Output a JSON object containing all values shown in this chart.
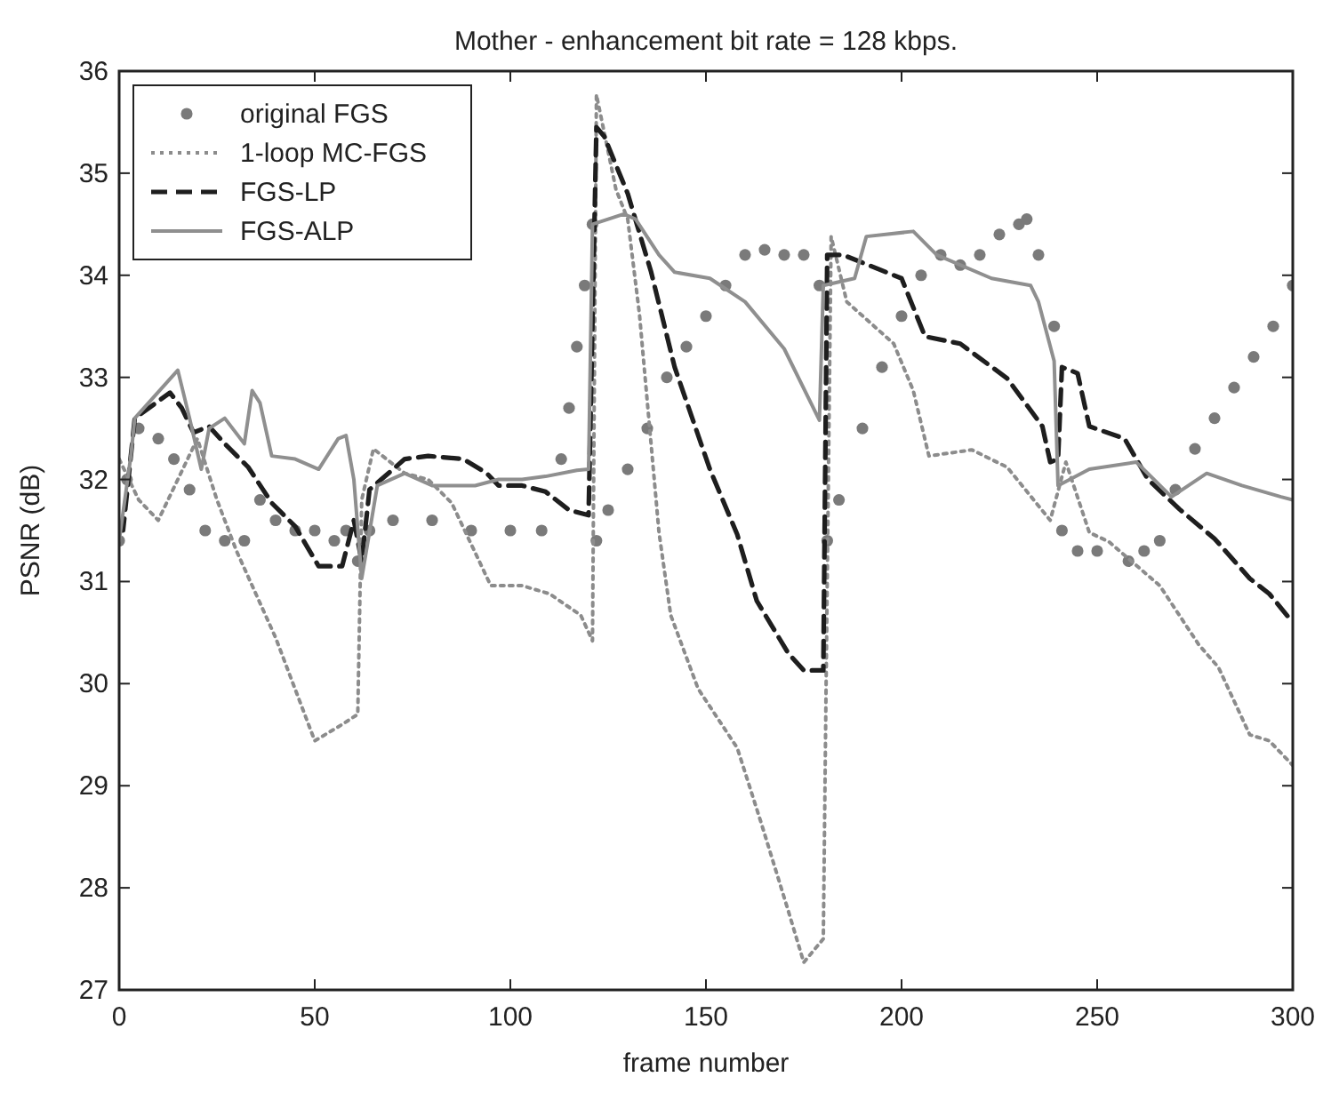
{
  "chart_data": {
    "type": "line",
    "title": "Mother - enhancement bit rate = 128 kbps.",
    "xlabel": "frame number",
    "ylabel": "PSNR (dB)",
    "xlim": [
      0,
      300
    ],
    "ylim": [
      27,
      36
    ],
    "xticks": [
      0,
      50,
      100,
      150,
      200,
      250,
      300
    ],
    "yticks": [
      27,
      28,
      29,
      30,
      31,
      32,
      33,
      34,
      35,
      36
    ],
    "grid": false,
    "legend": "top left",
    "series": [
      {
        "name": "original FGS",
        "type": "scatter",
        "marker": "circle",
        "color": "#7a7a7a",
        "x": [
          0,
          2,
          5,
          10,
          14,
          18,
          22,
          27,
          32,
          36,
          40,
          45,
          50,
          55,
          58,
          61,
          64,
          70,
          80,
          90,
          100,
          108,
          113,
          115,
          117,
          119,
          121,
          122,
          125,
          130,
          135,
          140,
          145,
          150,
          155,
          160,
          165,
          170,
          175,
          179,
          181,
          184,
          190,
          195,
          200,
          205,
          210,
          215,
          220,
          225,
          230,
          232,
          235,
          239,
          241,
          245,
          250,
          258,
          262,
          266,
          270,
          275,
          280,
          285,
          290,
          295,
          300
        ],
        "values": [
          31.4,
          32.0,
          32.5,
          32.4,
          32.2,
          31.9,
          31.5,
          31.4,
          31.4,
          31.8,
          31.6,
          31.5,
          31.5,
          31.4,
          31.5,
          31.2,
          31.5,
          31.6,
          31.6,
          31.5,
          31.5,
          31.5,
          32.2,
          32.7,
          33.3,
          33.9,
          34.5,
          31.4,
          31.7,
          32.1,
          32.5,
          33.0,
          33.3,
          33.6,
          33.9,
          34.2,
          34.25,
          34.2,
          34.2,
          33.9,
          31.4,
          31.8,
          32.5,
          33.1,
          33.6,
          34.0,
          34.2,
          34.1,
          34.2,
          34.4,
          34.5,
          34.55,
          34.2,
          33.5,
          31.5,
          31.3,
          31.3,
          31.2,
          31.3,
          31.4,
          31.9,
          32.3,
          32.6,
          32.9,
          33.2,
          33.5,
          33.9
        ]
      },
      {
        "name": "1-loop MC-FGS",
        "line_style": "dotted",
        "color": "#8c8c8c",
        "x": [
          0,
          5,
          10,
          15,
          20,
          25,
          30,
          40,
          50,
          57,
          61,
          62,
          65,
          73,
          79,
          85,
          95,
          103,
          110,
          118,
          121,
          122,
          127,
          130,
          133,
          138,
          141,
          148,
          158,
          164,
          171,
          175,
          180,
          181,
          182,
          186,
          198,
          203,
          207,
          218,
          227,
          238,
          242,
          248,
          253,
          266,
          276,
          281,
          289,
          294,
          300
        ],
        "values": [
          32.2,
          31.8,
          31.6,
          32.0,
          32.4,
          31.8,
          31.3,
          30.45,
          29.44,
          29.6,
          29.7,
          31.8,
          32.3,
          32.06,
          32.0,
          31.77,
          30.96,
          30.96,
          30.88,
          30.67,
          30.42,
          35.77,
          34.84,
          34.55,
          33.62,
          31.48,
          30.67,
          29.95,
          29.37,
          28.65,
          27.78,
          27.27,
          27.5,
          31.0,
          34.38,
          33.74,
          33.33,
          32.87,
          32.23,
          32.29,
          32.12,
          31.6,
          32.17,
          31.48,
          31.39,
          30.96,
          30.38,
          30.16,
          29.5,
          29.44,
          29.2
        ]
      },
      {
        "name": "FGS-LP",
        "line_style": "dashed",
        "color": "#1e1e1e",
        "x": [
          0,
          1,
          4,
          13,
          16,
          19,
          23,
          27,
          33,
          39,
          45,
          51,
          57,
          60,
          62,
          64,
          67,
          73,
          79,
          88,
          94,
          97,
          103,
          109,
          115,
          120,
          122,
          124,
          130,
          136,
          142,
          151,
          158,
          163,
          171,
          175,
          180,
          181,
          185,
          200,
          206,
          215,
          227,
          236,
          238,
          240,
          241,
          245,
          248,
          257,
          263,
          271,
          280,
          289,
          294,
          300
        ],
        "values": [
          31.5,
          31.5,
          32.6,
          32.85,
          32.7,
          32.46,
          32.52,
          32.35,
          32.12,
          31.77,
          31.54,
          31.15,
          31.15,
          31.6,
          31.2,
          31.9,
          32.0,
          32.2,
          32.23,
          32.2,
          32.06,
          31.94,
          31.94,
          31.88,
          31.7,
          31.65,
          35.45,
          35.36,
          34.8,
          34.03,
          33.1,
          32.1,
          31.46,
          30.81,
          30.3,
          30.13,
          30.13,
          34.2,
          34.2,
          33.97,
          33.4,
          33.33,
          32.99,
          32.52,
          32.17,
          32.2,
          33.1,
          33.04,
          32.52,
          32.4,
          32.0,
          31.71,
          31.42,
          31.03,
          30.88,
          30.6
        ]
      },
      {
        "name": "FGS-ALP",
        "line_style": "solid",
        "color": "#8f8f8f",
        "x": [
          0,
          3,
          4,
          15,
          18,
          21,
          23,
          27,
          32,
          34,
          36,
          39,
          45,
          51,
          56,
          58,
          60,
          62,
          66,
          73,
          80,
          91,
          97,
          103,
          109,
          117,
          120,
          121,
          129,
          132,
          138,
          142,
          151,
          160,
          170,
          179,
          180,
          188,
          191,
          203,
          209,
          223,
          233,
          235,
          239,
          240,
          248,
          260,
          269,
          278,
          287,
          297,
          300
        ],
        "values": [
          31.4,
          32.23,
          32.6,
          33.07,
          32.6,
          32.1,
          32.5,
          32.6,
          32.35,
          32.87,
          32.75,
          32.23,
          32.2,
          32.1,
          32.4,
          32.43,
          32.0,
          31.03,
          31.94,
          32.06,
          31.94,
          31.94,
          32.0,
          32.0,
          32.03,
          32.09,
          32.1,
          34.5,
          34.6,
          34.55,
          34.2,
          34.03,
          33.97,
          33.74,
          33.28,
          32.58,
          33.9,
          33.97,
          34.38,
          34.43,
          34.2,
          33.97,
          33.9,
          33.74,
          33.16,
          31.94,
          32.1,
          32.17,
          31.83,
          32.06,
          31.94,
          31.83,
          31.8
        ]
      }
    ]
  }
}
